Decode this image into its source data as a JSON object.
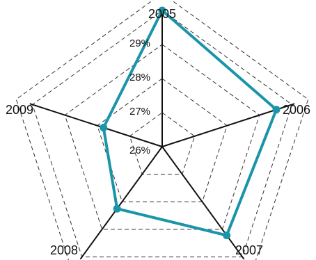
{
  "chart_data": {
    "type": "radar",
    "title": "",
    "categories": [
      "2005",
      "2006",
      "2007",
      "2008",
      "2009"
    ],
    "series": [
      {
        "values": [
          29.0,
          28.52,
          28.22,
          27.25,
          26.81
        ]
      }
    ],
    "rlim": [
      25.0,
      29.0
    ],
    "ticks": [
      {
        "value": 26,
        "label": "26%"
      },
      {
        "value": 27,
        "label": "27%"
      },
      {
        "value": 28,
        "label": "28%"
      },
      {
        "value": 29,
        "label": "29%"
      }
    ],
    "grid": "dashed",
    "colors": {
      "series": "#1a94a8",
      "axis": "#111111",
      "grid": "#333333"
    }
  }
}
